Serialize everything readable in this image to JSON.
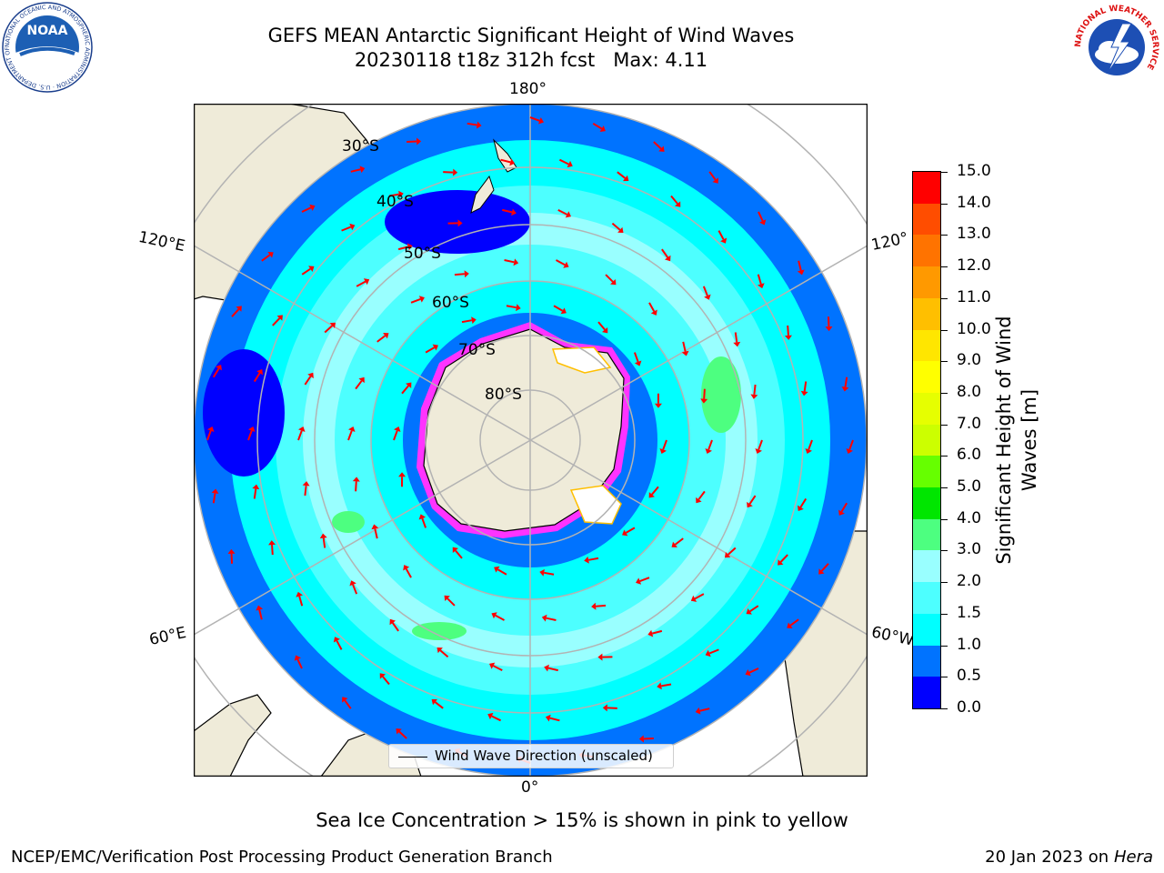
{
  "header": {
    "title_line1": "GEFS MEAN Antarctic Significant Height of Wind Waves",
    "title_line2": "20230118 t18z 312h fcst   Max: 4.11"
  },
  "logos": {
    "noaa_text": "NOAA",
    "noaa_ring": "NATIONAL OCEANIC AND ATMOSPHERIC ADMINISTRATION · U.S. DEPARTMENT OF COMMERCE",
    "nws_ring": "NATIONAL WEATHER SERVICE"
  },
  "map": {
    "longitude_labels": [
      "180°",
      "120°E",
      "120°",
      "60°E",
      "60°W",
      "0°"
    ],
    "latitude_labels": [
      "30°S",
      "40°S",
      "50°S",
      "60°S",
      "70°S",
      "80°S"
    ],
    "legend_label": "Wind Wave Direction (unscaled)",
    "colors": {
      "land": "#efebd9",
      "coast": "#000000",
      "grid": "#b3b3b3",
      "arrow": "#ff0000",
      "ice": "#ff33ff"
    }
  },
  "colorbar": {
    "ticks": [
      "15.0",
      "14.0",
      "13.0",
      "12.0",
      "11.0",
      "10.0",
      "9.0",
      "8.0",
      "7.0",
      "6.0",
      "5.0",
      "4.0",
      "3.0",
      "2.0",
      "1.5",
      "1.0",
      "0.5",
      "0.0"
    ],
    "colors": [
      "#0000ff",
      "#0073ff",
      "#00ffff",
      "#4dffff",
      "#99ffff",
      "#4dff80",
      "#00e600",
      "#66ff00",
      "#ccff00",
      "#e6ff00",
      "#ffff00",
      "#ffe600",
      "#ffbf00",
      "#ff9900",
      "#ff7300",
      "#ff4d00",
      "#ff0000"
    ],
    "label": "Significant Height of Wind Waves [m]"
  },
  "notes": {
    "sea_ice": "Sea Ice Concentration > 15% is shown in pink to yellow",
    "footer_left": "NCEP/EMC/Verification Post Processing Product Generation Branch",
    "footer_date": "20 Jan 2023 on ",
    "footer_machine": "Hera"
  }
}
